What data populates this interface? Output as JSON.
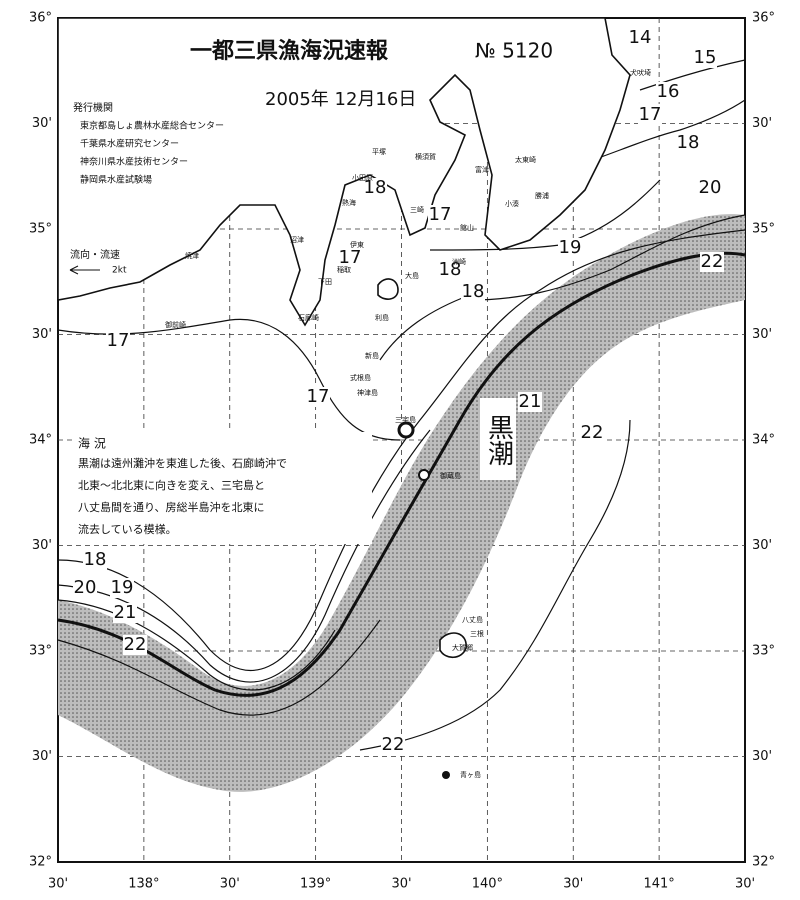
{
  "header": {
    "title": "一都三県漁海況速報",
    "number": "№ 5120",
    "date": "2005年 12月16日"
  },
  "issuers": {
    "heading": "発行機関",
    "items": [
      "東京都島しょ農林水産総合センター",
      "千葉県水産研究センター",
      "神奈川県水産技術センター",
      "静岡県水産試験場"
    ]
  },
  "legend": {
    "label": "流向・流速",
    "speed": "2kt"
  },
  "sea_condition": {
    "heading": "海 況",
    "lines": [
      "黒潮は遠州灘沖を東進した後、石廊崎沖で",
      "北東〜北北東に向きを変え、三宅島と",
      "八丈島間を通り、房総半島沖を北東に",
      "流去している模様。"
    ]
  },
  "current_label": "黒潮",
  "lat_labels": [
    "36°",
    "30'",
    "35°",
    "30'",
    "34°",
    "30'",
    "33°",
    "30'",
    "32°"
  ],
  "lon_labels": [
    "30'",
    "138°",
    "30'",
    "139°",
    "30'",
    "140°",
    "30'",
    "141°",
    "30'"
  ],
  "isotherm_labels": [
    14,
    15,
    16,
    17,
    18,
    20,
    19,
    22,
    18,
    17,
    18,
    17,
    18,
    17,
    17,
    21,
    22,
    18,
    20,
    19,
    21,
    22,
    22
  ],
  "place_names": [
    "犬吠埼",
    "太東崎",
    "勝浦",
    "小湊",
    "館山",
    "洲崎",
    "平塚",
    "横須賀",
    "富津",
    "小田原",
    "三崎",
    "熱海",
    "伊東",
    "稲取",
    "下田",
    "石廊崎",
    "沼津",
    "焼津",
    "御前崎",
    "大島",
    "利島",
    "新島",
    "式根島",
    "神津島",
    "三宅島",
    "御蔵島",
    "八丈島",
    "三根",
    "大賀郷",
    "青ヶ島"
  ]
}
